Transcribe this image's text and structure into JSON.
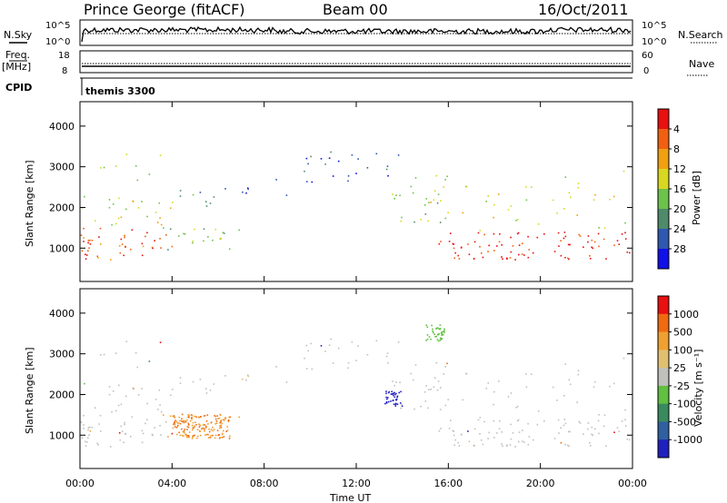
{
  "header": {
    "station": "Prince George (fitACF)",
    "beam": "Beam 00",
    "date": "16/Oct/2011"
  },
  "top_panels": {
    "nsky_label": "N.Sky",
    "nsearch_label": "N.Search",
    "freq_label_1": "Freq.",
    "freq_label_2": "[MHz]",
    "nave_label": "Nave",
    "cpid_label": "CPID",
    "cpid_value": "themis 3300",
    "noise_ticks_left": [
      "10^5",
      "10^0"
    ],
    "noise_ticks_right": [
      "10^5",
      "10^0"
    ],
    "freq_ticks": [
      "18",
      "8"
    ],
    "nave_ticks": [
      "60",
      "0"
    ]
  },
  "chart_data": [
    {
      "type": "heatmap",
      "name": "power",
      "ylabel": "Slant Range [km]",
      "xlabel": "Time UT",
      "x_ticks": [
        "00:00",
        "04:00",
        "08:00",
        "12:00",
        "16:00",
        "20:00",
        "00:00"
      ],
      "y_ticks": [
        "1000",
        "2000",
        "3000",
        "4000"
      ],
      "xlim_hours": [
        0,
        24
      ],
      "ylim_km": [
        180,
        4600
      ],
      "colorbar": {
        "label": "Power [dB]",
        "ticks": [
          "4",
          "8",
          "12",
          "16",
          "20",
          "24",
          "28"
        ],
        "colors": [
          "#1010e8",
          "#2f58b0",
          "#4f8a6a",
          "#6cc24a",
          "#d8d820",
          "#f0a010",
          "#f06010",
          "#e81010"
        ]
      }
    },
    {
      "type": "heatmap",
      "name": "velocity",
      "ylabel": "Slant Range [km]",
      "xlabel": "Time UT",
      "x_ticks": [
        "00:00",
        "04:00",
        "08:00",
        "12:00",
        "16:00",
        "20:00",
        "00:00"
      ],
      "y_ticks": [
        "1000",
        "2000",
        "3000",
        "4000"
      ],
      "xlim_hours": [
        0,
        24
      ],
      "ylim_km": [
        180,
        4600
      ],
      "colorbar": {
        "label": "Velocity [m s⁻¹]",
        "ticks": [
          "1000",
          "500",
          "100",
          "25",
          "-25",
          "-100",
          "-500",
          "-1000"
        ],
        "colors": [
          "#2020c0",
          "#3060a0",
          "#3a8a60",
          "#60c040",
          "#c0c0bc",
          "#e0c070",
          "#f0a030",
          "#f06a10",
          "#e81010"
        ]
      }
    }
  ],
  "xaxis_title": "Time UT"
}
